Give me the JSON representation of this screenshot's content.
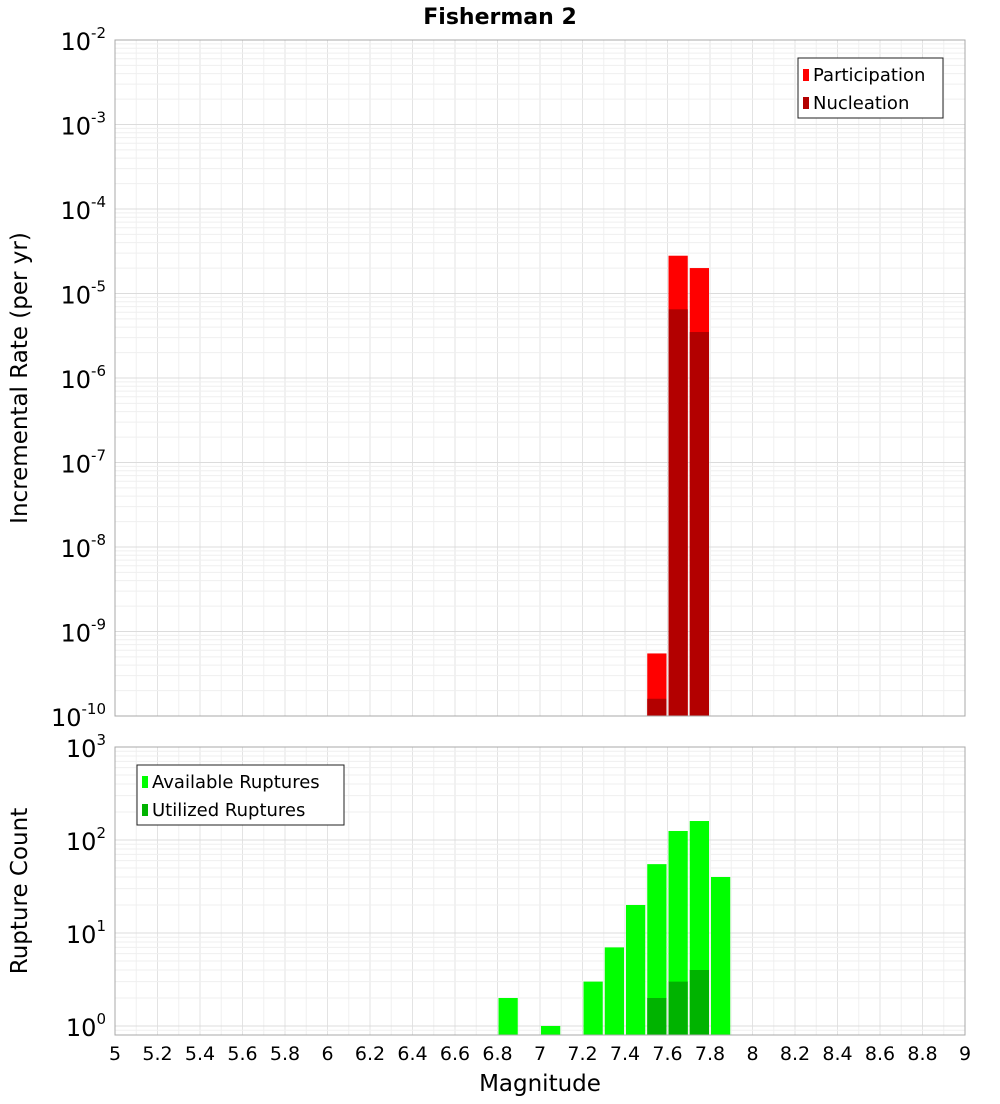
{
  "chart_data": [
    {
      "type": "bar",
      "title": "Fisherman 2",
      "xlabel": "Magnitude",
      "ylabel": "Incremental Rate (per yr)",
      "xlim": [
        5,
        9
      ],
      "ylim": [
        1e-10,
        0.01
      ],
      "yscale": "log",
      "grid": true,
      "legend_position": "top-right",
      "yticks": [
        {
          "base": "10",
          "exp": "-10"
        },
        {
          "base": "10",
          "exp": "-9"
        },
        {
          "base": "10",
          "exp": "-8"
        },
        {
          "base": "10",
          "exp": "-7"
        },
        {
          "base": "10",
          "exp": "-6"
        },
        {
          "base": "10",
          "exp": "-5"
        },
        {
          "base": "10",
          "exp": "-4"
        },
        {
          "base": "10",
          "exp": "-3"
        },
        {
          "base": "10",
          "exp": "-2"
        }
      ],
      "series": [
        {
          "name": "Participation",
          "color": "#ff0000",
          "points": [
            {
              "x": 7.55,
              "y": 5.5e-10
            },
            {
              "x": 7.65,
              "y": 2.8e-05
            },
            {
              "x": 7.75,
              "y": 2e-05
            }
          ]
        },
        {
          "name": "Nucleation",
          "color": "#b30000",
          "points": [
            {
              "x": 7.55,
              "y": 1.6e-10
            },
            {
              "x": 7.65,
              "y": 6.5e-06
            },
            {
              "x": 7.75,
              "y": 3.5e-06
            }
          ]
        }
      ]
    },
    {
      "type": "bar",
      "title": "",
      "xlabel": "Magnitude",
      "ylabel": "Rupture Count",
      "xlim": [
        5,
        9
      ],
      "ylim": [
        0.8,
        1000
      ],
      "yscale": "log",
      "grid": true,
      "legend_position": "top-left",
      "yticks": [
        {
          "base": "10",
          "exp": "0"
        },
        {
          "base": "10",
          "exp": "1"
        },
        {
          "base": "10",
          "exp": "2"
        },
        {
          "base": "10",
          "exp": "3"
        }
      ],
      "xticks": [
        "5",
        "5.2",
        "5.4",
        "5.6",
        "5.8",
        "6",
        "6.2",
        "6.4",
        "6.6",
        "6.8",
        "7",
        "7.2",
        "7.4",
        "7.6",
        "7.8",
        "8",
        "8.2",
        "8.4",
        "8.6",
        "8.8",
        "9"
      ],
      "series": [
        {
          "name": "Available Ruptures",
          "color": "#00ff00",
          "points": [
            {
              "x": 6.85,
              "y": 2
            },
            {
              "x": 7.05,
              "y": 1
            },
            {
              "x": 7.25,
              "y": 3
            },
            {
              "x": 7.35,
              "y": 7
            },
            {
              "x": 7.45,
              "y": 20
            },
            {
              "x": 7.55,
              "y": 55
            },
            {
              "x": 7.65,
              "y": 125
            },
            {
              "x": 7.75,
              "y": 160
            },
            {
              "x": 7.85,
              "y": 40
            }
          ]
        },
        {
          "name": "Utilized Ruptures",
          "color": "#00b300",
          "points": [
            {
              "x": 7.55,
              "y": 2
            },
            {
              "x": 7.65,
              "y": 3
            },
            {
              "x": 7.75,
              "y": 4
            }
          ]
        }
      ]
    }
  ]
}
